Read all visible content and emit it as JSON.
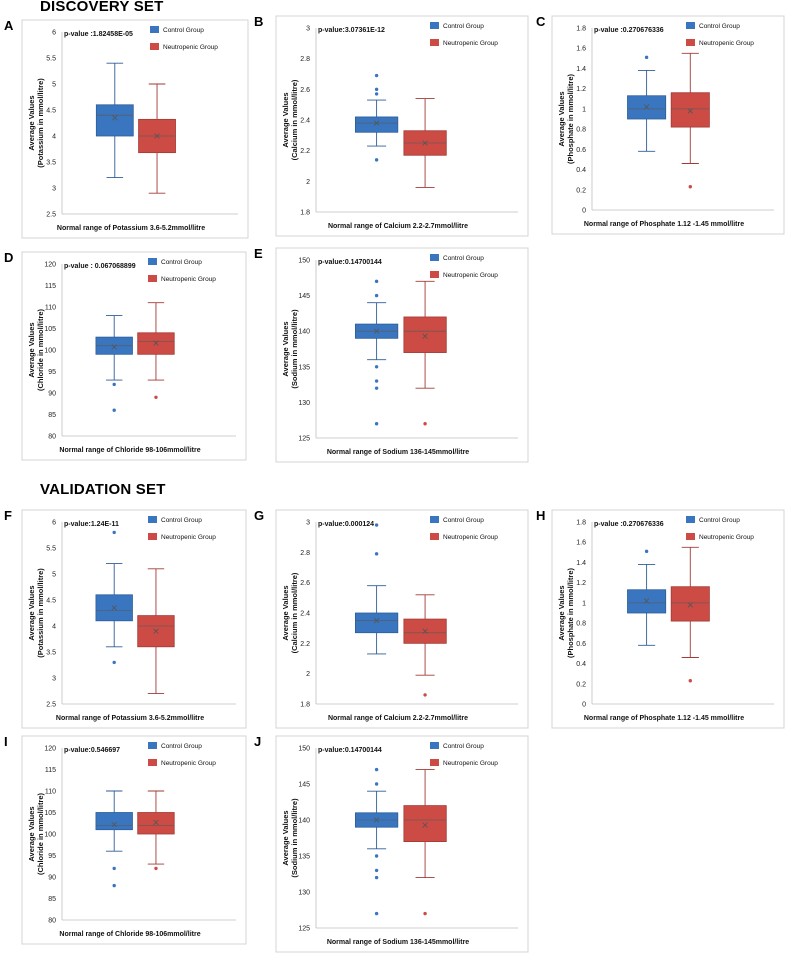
{
  "sections": {
    "discovery": "DISCOVERY SET",
    "validation": "VALIDATION SET"
  },
  "legend": {
    "control": "Control Group",
    "neutropenic": "Neutropenic Group"
  },
  "colors": {
    "control": "#3a76c0",
    "control_edge": "#2e5d98",
    "neutropenic": "#cc4b45",
    "neutropenic_edge": "#a23a35"
  },
  "chart_data": [
    {
      "id": "A",
      "type": "box",
      "pvalue": "p-value :1.82458E-05",
      "ylabel1": "Average Values",
      "ylabel2": "(Potassium in mmol/litre)",
      "xlabel": "Normal range of Potassium 3.6-5.2mmol/litre",
      "ylim": [
        2.5,
        6
      ],
      "yticks": [
        2.5,
        3,
        3.5,
        4,
        4.5,
        5,
        5.5,
        6
      ],
      "groups": [
        {
          "name": "Control Group",
          "min": 3.2,
          "q1": 4.0,
          "median": 4.4,
          "q3": 4.6,
          "max": 5.4,
          "mean": 4.35,
          "outliers": []
        },
        {
          "name": "Neutropenic Group",
          "min": 2.9,
          "q1": 3.68,
          "median": 4.0,
          "q3": 4.32,
          "max": 5.0,
          "mean": 4.0,
          "outliers": []
        }
      ]
    },
    {
      "id": "B",
      "type": "box",
      "pvalue": "p-value:3.07361E-12",
      "ylabel1": "Average Values",
      "ylabel2": "(Calcium in mmol/litre)",
      "xlabel": "Normal range of Calcium 2.2-2.7mmol/litre",
      "ylim": [
        1.8,
        3
      ],
      "yticks": [
        1.8,
        2,
        2.2,
        2.4,
        2.6,
        2.8,
        3
      ],
      "groups": [
        {
          "name": "Control Group",
          "min": 2.23,
          "q1": 2.32,
          "median": 2.38,
          "q3": 2.42,
          "max": 2.53,
          "mean": 2.38,
          "outliers": [
            2.14,
            2.57,
            2.6,
            2.69
          ]
        },
        {
          "name": "Neutropenic Group",
          "min": 1.96,
          "q1": 2.17,
          "median": 2.25,
          "q3": 2.33,
          "max": 2.54,
          "mean": 2.25,
          "outliers": []
        }
      ]
    },
    {
      "id": "C",
      "type": "box",
      "pvalue": "p-value :0.270676336",
      "ylabel1": "Average Values",
      "ylabel2": "(Phosphate in mmol/litre)",
      "xlabel": "Normal range of Phosphate 1.12 -1.45 mmol/litre",
      "ylim": [
        0,
        1.8
      ],
      "yticks": [
        0,
        0.2,
        0.4,
        0.6,
        0.8,
        1,
        1.2,
        1.4,
        1.6,
        1.8
      ],
      "groups": [
        {
          "name": "Control Group",
          "min": 0.58,
          "q1": 0.9,
          "median": 1.0,
          "q3": 1.13,
          "max": 1.38,
          "mean": 1.02,
          "outliers": [
            1.51
          ]
        },
        {
          "name": "Neutropenic Group",
          "min": 0.46,
          "q1": 0.82,
          "median": 1.0,
          "q3": 1.16,
          "max": 1.55,
          "mean": 0.98,
          "outliers": [
            0.23
          ]
        }
      ]
    },
    {
      "id": "D",
      "type": "box",
      "pvalue": "p-value : 0.067068899",
      "ylabel1": "Average Values",
      "ylabel2": "(Chloride in mmol/litre)",
      "xlabel": "Normal range of  Chloride 98-106mmol/litre",
      "ylim": [
        80,
        120
      ],
      "yticks": [
        80,
        85,
        90,
        95,
        100,
        105,
        110,
        115,
        120
      ],
      "groups": [
        {
          "name": "Control Group",
          "min": 93,
          "q1": 99,
          "median": 101,
          "q3": 103,
          "max": 108,
          "mean": 100.7,
          "outliers": [
            86,
            92
          ]
        },
        {
          "name": "Neutropenic Group",
          "min": 93,
          "q1": 99,
          "median": 102,
          "q3": 104,
          "max": 111,
          "mean": 101.6,
          "outliers": [
            89
          ]
        }
      ]
    },
    {
      "id": "E",
      "type": "box",
      "pvalue": "p-value:0.14700144",
      "ylabel1": "Average Values",
      "ylabel2": "(Sodium in mmol/litre)",
      "xlabel": "Normal range of Sodium 136-145mmol/litre",
      "ylim": [
        125,
        150
      ],
      "yticks": [
        125,
        130,
        135,
        140,
        145,
        150
      ],
      "groups": [
        {
          "name": "Control Group",
          "min": 136,
          "q1": 139,
          "median": 140,
          "q3": 141,
          "max": 144,
          "mean": 140,
          "outliers": [
            127,
            132,
            133,
            135,
            145,
            147
          ]
        },
        {
          "name": "Neutropenic Group",
          "min": 132,
          "q1": 137,
          "median": 140,
          "q3": 142,
          "max": 147,
          "mean": 139.3,
          "outliers": [
            127
          ]
        }
      ]
    },
    {
      "id": "F",
      "type": "box",
      "pvalue": "p-value:1.24E-11",
      "ylabel1": "Average Values",
      "ylabel2": "(Potassium in mmol/litre)",
      "xlabel": "Normal range of Potassium 3.6-5.2mmol/litre",
      "ylim": [
        2.5,
        6
      ],
      "yticks": [
        2.5,
        3,
        3.5,
        4,
        4.5,
        5,
        5.5,
        6
      ],
      "groups": [
        {
          "name": "Control Group",
          "min": 3.6,
          "q1": 4.1,
          "median": 4.3,
          "q3": 4.6,
          "max": 5.2,
          "mean": 4.35,
          "outliers": [
            3.3,
            5.8
          ]
        },
        {
          "name": "Neutropenic Group",
          "min": 2.7,
          "q1": 3.6,
          "median": 4.0,
          "q3": 4.2,
          "max": 5.1,
          "mean": 3.9,
          "outliers": []
        }
      ]
    },
    {
      "id": "G",
      "type": "box",
      "pvalue": "p-value:0.000124",
      "ylabel1": "Average Values",
      "ylabel2": "(Calcium in mmol/litre)",
      "xlabel": "Normal range of Calcium 2.2-2.7mmol/litre",
      "ylim": [
        1.8,
        3
      ],
      "yticks": [
        1.8,
        2,
        2.2,
        2.4,
        2.6,
        2.8,
        3
      ],
      "groups": [
        {
          "name": "Control Group",
          "min": 2.13,
          "q1": 2.27,
          "median": 2.35,
          "q3": 2.4,
          "max": 2.58,
          "mean": 2.35,
          "outliers": [
            2.79,
            2.98
          ]
        },
        {
          "name": "Neutropenic Group",
          "min": 1.99,
          "q1": 2.2,
          "median": 2.27,
          "q3": 2.36,
          "max": 2.52,
          "mean": 2.28,
          "outliers": [
            1.86
          ]
        }
      ]
    },
    {
      "id": "H",
      "type": "box",
      "pvalue": "p-value :0.270676336",
      "ylabel1": "Average Values",
      "ylabel2": "(Phosphate in mmol/litre)",
      "xlabel": "Normal range of Phosphate 1.12 -1.45 mmol/litre",
      "ylim": [
        0,
        1.8
      ],
      "yticks": [
        0,
        0.2,
        0.4,
        0.6,
        0.8,
        1,
        1.2,
        1.4,
        1.6,
        1.8
      ],
      "groups": [
        {
          "name": "Control Group",
          "min": 0.58,
          "q1": 0.9,
          "median": 1.0,
          "q3": 1.13,
          "max": 1.38,
          "mean": 1.02,
          "outliers": [
            1.51
          ]
        },
        {
          "name": "Neutropenic Group",
          "min": 0.46,
          "q1": 0.82,
          "median": 1.0,
          "q3": 1.16,
          "max": 1.55,
          "mean": 0.98,
          "outliers": [
            0.23
          ]
        }
      ]
    },
    {
      "id": "I",
      "type": "box",
      "pvalue": "p-value:0.546697",
      "ylabel1": "Average Values",
      "ylabel2": "(Chloride in mmol/litre)",
      "xlabel": "Normal range of  Chloride 98-106mmol/litre",
      "ylim": [
        80,
        120
      ],
      "yticks": [
        80,
        85,
        90,
        95,
        100,
        105,
        110,
        115,
        120
      ],
      "groups": [
        {
          "name": "Control Group",
          "min": 96,
          "q1": 101,
          "median": 102,
          "q3": 105,
          "max": 110,
          "mean": 102.2,
          "outliers": [
            88,
            92
          ]
        },
        {
          "name": "Neutropenic Group",
          "min": 93,
          "q1": 100,
          "median": 102,
          "q3": 105,
          "max": 110,
          "mean": 102.7,
          "outliers": [
            92
          ]
        }
      ]
    },
    {
      "id": "J",
      "type": "box",
      "pvalue": "p-value:0.14700144",
      "ylabel1": "Average Values",
      "ylabel2": "(Sodium in mmol/litre)",
      "xlabel": "Normal range of Sodium 136-145mmol/litre",
      "ylim": [
        125,
        150
      ],
      "yticks": [
        125,
        130,
        135,
        140,
        145,
        150
      ],
      "groups": [
        {
          "name": "Control Group",
          "min": 136,
          "q1": 139,
          "median": 140,
          "q3": 141,
          "max": 144,
          "mean": 140,
          "outliers": [
            127,
            132,
            133,
            135,
            145,
            147
          ]
        },
        {
          "name": "Neutropenic Group",
          "min": 132,
          "q1": 137,
          "median": 140,
          "q3": 142,
          "max": 147,
          "mean": 139.3,
          "outliers": [
            127
          ]
        }
      ]
    }
  ]
}
